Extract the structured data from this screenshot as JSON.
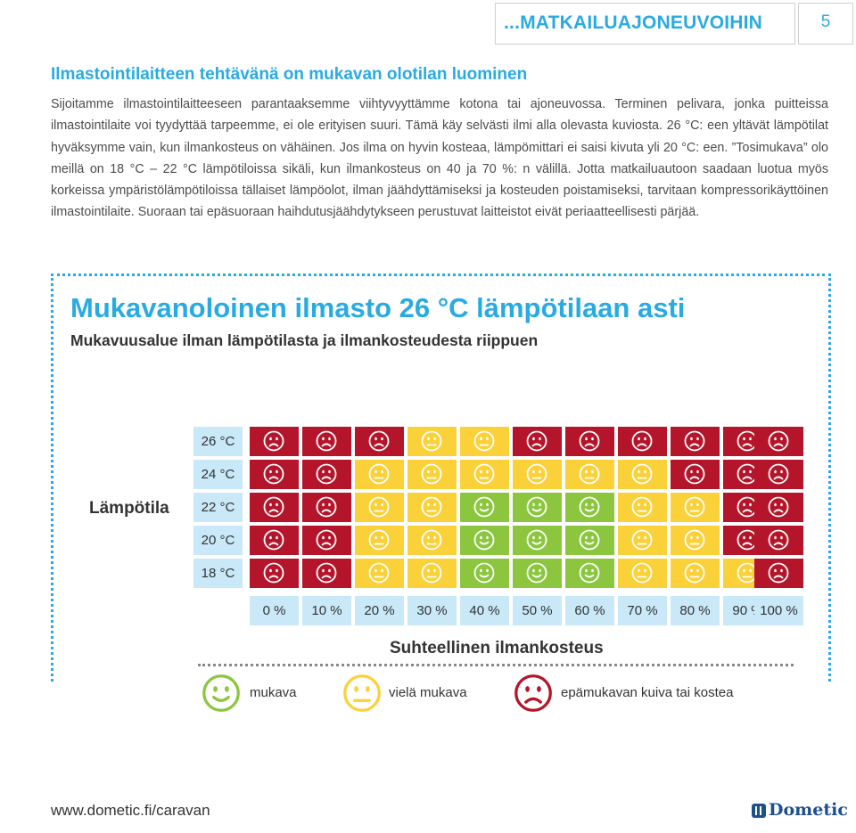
{
  "header": {
    "section_title": "...MATKAILUAJONEUVOIHIN",
    "page_number": "5"
  },
  "article": {
    "heading": "Ilmastointilaitteen tehtävänä on mukavan olotilan luominen",
    "body": "Sijoitamme ilmastointilaitteeseen parantaaksemme viihtyvyyttämme kotona tai ajoneuvossa. Terminen pelivara, jonka puitteissa ilmastointilaite voi tyydyttää tarpeemme, ei ole erityisen suuri. Tämä käy selvästi ilmi alla olevasta kuviosta. 26 °C: een yltävät lämpötilat hyväksymme vain, kun ilmankosteus on vähäinen. Jos ilma on hyvin kosteaa, lämpömittari ei saisi kivuta yli 20 °C: een. ”Tosimukava” olo meillä on 18 °C – 22 °C lämpötiloissa sikäli, kun ilmankosteus on 40 ja 70 %: n välillä. Jotta matkailuautoon saadaan luotua myös korkeissa ympäristölämpötiloissa tällaiset lämpöolot, ilman jäähdyttämiseksi ja kosteuden poistamiseksi, tarvitaan kompressorikäyttöinen ilmastointilaite. Suoraan tai epäsuoraan haihdutusjäähdytykseen perustuvat laitteistot eivät periaatteellisesti pärjää."
  },
  "chart_data": {
    "type": "heatmap",
    "title": "Mukavanoloinen ilmasto 26 °C lämpötilaan asti",
    "subtitle": "Mukavuusalue ilman lämpötilasta ja ilmankosteudesta riippuen",
    "ylabel": "Lämpötila",
    "xlabel": "Suhteellinen ilmankosteus",
    "y_categories": [
      "26 °C",
      "24 °C",
      "22 °C",
      "20 °C",
      "18 °C"
    ],
    "x_categories": [
      "0 %",
      "10 %",
      "20 %",
      "30 %",
      "40 %",
      "50 %",
      "60 %",
      "70 %",
      "80 %",
      "90 %",
      "100 %"
    ],
    "values": [
      [
        "epamukava",
        "epamukava",
        "epamukava",
        "vielä",
        "vielä",
        "epamukava",
        "epamukava",
        "epamukava",
        "epamukava",
        "epamukava",
        "epamukava"
      ],
      [
        "epamukava",
        "epamukava",
        "vielä",
        "vielä",
        "vielä",
        "vielä",
        "vielä",
        "vielä",
        "epamukava",
        "epamukava",
        "epamukava"
      ],
      [
        "epamukava",
        "epamukava",
        "vielä",
        "vielä",
        "mukava",
        "mukava",
        "mukava",
        "vielä",
        "vielä",
        "epamukava",
        "epamukava"
      ],
      [
        "epamukava",
        "epamukava",
        "vielä",
        "vielä",
        "mukava",
        "mukava",
        "mukava",
        "vielä",
        "vielä",
        "epamukava",
        "epamukava"
      ],
      [
        "epamukava",
        "epamukava",
        "vielä",
        "vielä",
        "mukava",
        "mukava",
        "mukava",
        "vielä",
        "vielä",
        "vielä",
        "epamukava"
      ]
    ],
    "legend": [
      {
        "key": "mukava",
        "label": "mukava",
        "color": "#8cc63f",
        "face": "smile"
      },
      {
        "key": "vielä",
        "label": "vielä mukava",
        "color": "#fbd13a",
        "face": "neutral"
      },
      {
        "key": "epamukava",
        "label": "epämukavan kuiva tai kostea",
        "color": "#b5152b",
        "face": "frown"
      }
    ],
    "legend_placement": "bottom"
  },
  "footer": {
    "url": "www.dometic.fi/caravan",
    "logo": "Dometic"
  }
}
